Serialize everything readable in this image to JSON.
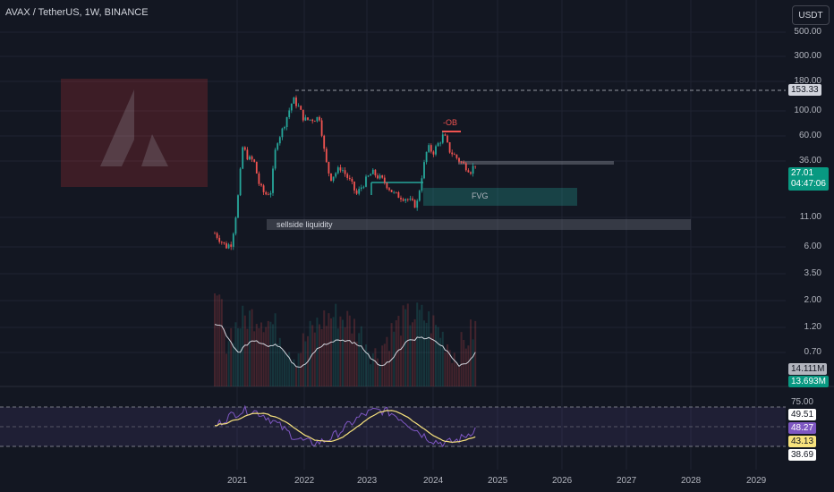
{
  "header": {
    "title": "AVAX / TetherUS, 1W, BINANCE",
    "currency_button": "USDT"
  },
  "price_axis": {
    "ticks": [
      "500.00",
      "300.00",
      "180.00",
      "100.00",
      "60.00",
      "36.00",
      "11.00",
      "6.00",
      "3.50",
      "2.00",
      "1.20",
      "0.70"
    ],
    "price_tag": "27.01",
    "countdown": "04:47:06",
    "level_tag": "153.33",
    "volume_tag_1": "14.111M",
    "volume_tag_2": "13.693M"
  },
  "rsi_axis": {
    "tick": "75.00",
    "tag_1": "49.51",
    "tag_2": "48.27",
    "tag_3": "43.13",
    "tag_4": "38.69"
  },
  "time_axis": {
    "ticks": [
      "2021",
      "2022",
      "2023",
      "2024",
      "2025",
      "2026",
      "2027",
      "2028",
      "2029"
    ]
  },
  "annotations": {
    "ob": "-OB",
    "fvg": "FVG",
    "liquidity": "sellside liquidity"
  },
  "colors": {
    "background": "#131722",
    "up": "#26a69a",
    "down": "#ef5350",
    "rsi_line": "#7e57c2",
    "rsi_ma": "#f7e27d"
  },
  "chart_data": {
    "type": "candlestick",
    "symbol": "AVAX / TetherUS",
    "interval": "1W",
    "y_scale": "log",
    "close_path": [
      [
        "2020-09",
        4.5
      ],
      [
        "2020-11",
        3.2
      ],
      [
        "2020-12",
        3.5
      ],
      [
        "2021-01",
        9
      ],
      [
        "2021-02",
        40
      ],
      [
        "2021-03",
        30
      ],
      [
        "2021-04",
        28
      ],
      [
        "2021-05",
        15
      ],
      [
        "2021-06",
        12
      ],
      [
        "2021-07",
        13
      ],
      [
        "2021-08",
        45
      ],
      [
        "2021-09",
        60
      ],
      [
        "2021-11",
        135
      ],
      [
        "2021-12",
        110
      ],
      [
        "2022-01",
        80
      ],
      [
        "2022-02",
        80
      ],
      [
        "2022-04",
        85
      ],
      [
        "2022-05",
        30
      ],
      [
        "2022-06",
        18
      ],
      [
        "2022-08",
        24
      ],
      [
        "2022-10",
        16
      ],
      [
        "2022-11",
        12
      ],
      [
        "2023-01",
        18
      ],
      [
        "2023-02",
        21
      ],
      [
        "2023-04",
        17
      ],
      [
        "2023-06",
        12
      ],
      [
        "2023-08",
        11
      ],
      [
        "2023-10",
        9
      ],
      [
        "2023-11",
        20
      ],
      [
        "2023-12",
        40
      ],
      [
        "2024-01",
        35
      ],
      [
        "2024-03",
        55
      ],
      [
        "2024-04",
        37
      ],
      [
        "2024-06",
        28
      ],
      [
        "2024-08",
        22
      ],
      [
        "2024-09",
        27
      ]
    ],
    "levels": {
      "high_line": 153.33,
      "last_price": 27.01
    }
  }
}
